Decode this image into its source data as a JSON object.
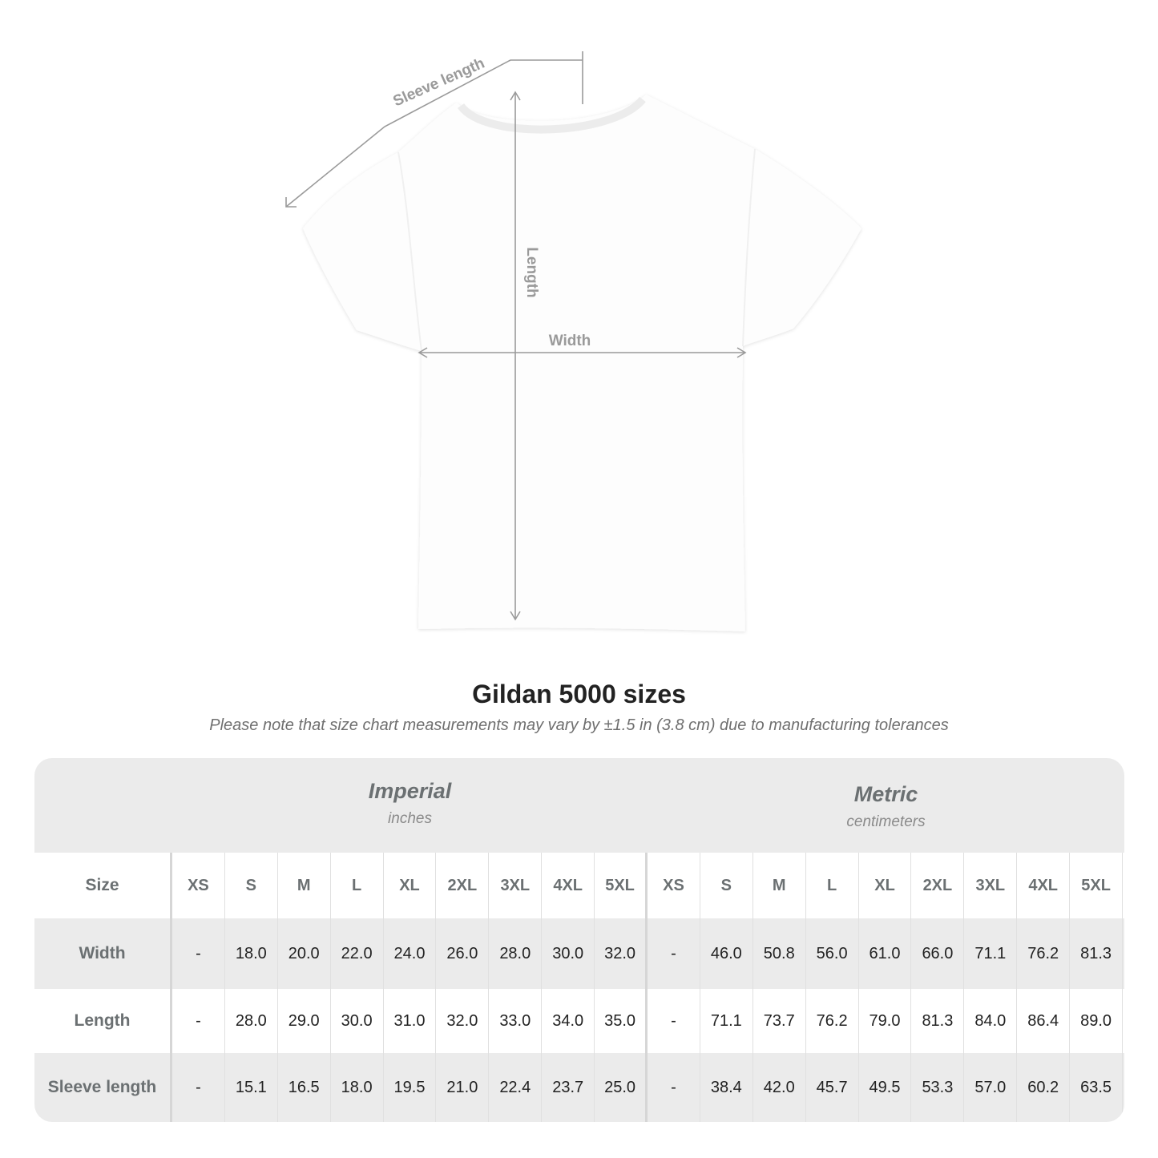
{
  "diagram": {
    "labels": {
      "sleeve": "Sleeve length",
      "length": "Length",
      "width": "Width"
    },
    "line_color": "#9a9a9a"
  },
  "title": "Gildan 5000 sizes",
  "note": "Please note that size chart measurements may vary by ±1.5 in (3.8 cm) due to manufacturing tolerances",
  "table": {
    "imperial": {
      "name": "Imperial",
      "unit": "inches"
    },
    "metric": {
      "name": "Metric",
      "unit": "centimeters"
    },
    "size_label": "Size",
    "sizes": [
      "XS",
      "S",
      "M",
      "L",
      "XL",
      "2XL",
      "3XL",
      "4XL",
      "5XL"
    ],
    "rows": [
      {
        "label": "Width",
        "imperial": [
          "-",
          "18.0",
          "20.0",
          "22.0",
          "24.0",
          "26.0",
          "28.0",
          "30.0",
          "32.0"
        ],
        "metric": [
          "-",
          "46.0",
          "50.8",
          "56.0",
          "61.0",
          "66.0",
          "71.1",
          "76.2",
          "81.3"
        ]
      },
      {
        "label": "Length",
        "imperial": [
          "-",
          "28.0",
          "29.0",
          "30.0",
          "31.0",
          "32.0",
          "33.0",
          "34.0",
          "35.0"
        ],
        "metric": [
          "-",
          "71.1",
          "73.7",
          "76.2",
          "79.0",
          "81.3",
          "84.0",
          "86.4",
          "89.0"
        ]
      },
      {
        "label": "Sleeve length",
        "imperial": [
          "-",
          "15.1",
          "16.5",
          "18.0",
          "19.5",
          "21.0",
          "22.4",
          "23.7",
          "25.0"
        ],
        "metric": [
          "-",
          "38.4",
          "42.0",
          "45.7",
          "49.5",
          "53.3",
          "57.0",
          "60.2",
          "63.5"
        ]
      }
    ]
  }
}
